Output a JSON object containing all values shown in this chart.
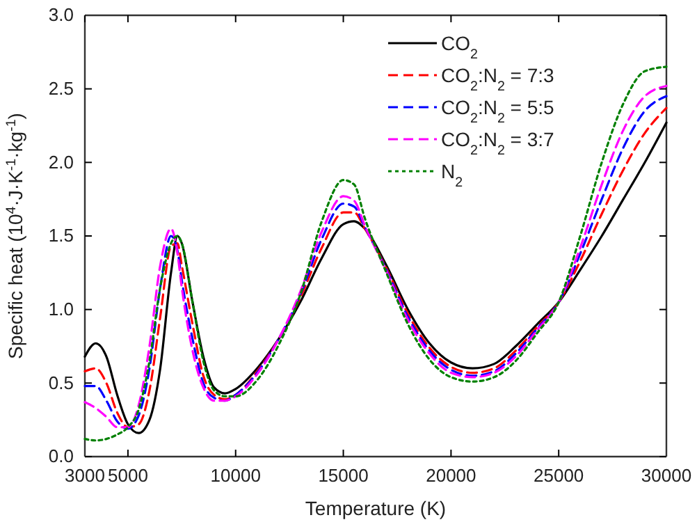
{
  "chart_data": {
    "type": "line",
    "xlabel": "Temperature (K)",
    "ylabel": "Specific heat (10$^{4}$·J·K$^{-1}$·kg$^{-1}$)",
    "x": [
      3000,
      3500,
      4000,
      4500,
      5000,
      5500,
      6000,
      6500,
      7000,
      7300,
      7500,
      8000,
      8500,
      9000,
      9500,
      10000,
      11000,
      12000,
      13000,
      14000,
      15000,
      15500,
      16000,
      17000,
      18000,
      19000,
      20000,
      21000,
      22000,
      23000,
      24000,
      25000,
      26000,
      27000,
      28000,
      29000,
      30000
    ],
    "xlim": [
      3000,
      30000
    ],
    "xticks": [
      3000,
      5000,
      10000,
      15000,
      20000,
      25000,
      30000
    ],
    "ylim": [
      0,
      3
    ],
    "yticks": [
      {
        "value": 0,
        "label": "0.0"
      },
      0.5,
      {
        "value": 1,
        "label": "1.0"
      },
      1.5,
      {
        "value": 2,
        "label": "2.0"
      },
      2.5,
      {
        "value": 3,
        "label": "3.0"
      }
    ],
    "legend": "top right",
    "grid": false,
    "series": [
      {
        "name": "CO$_{2}$",
        "color": "#000000",
        "line_style": "solid",
        "values": [
          0.68,
          0.77,
          0.68,
          0.42,
          0.22,
          0.16,
          0.25,
          0.6,
          1.25,
          1.5,
          1.45,
          1.05,
          0.68,
          0.47,
          0.43,
          0.46,
          0.6,
          0.8,
          1.05,
          1.35,
          1.58,
          1.6,
          1.55,
          1.3,
          1.0,
          0.77,
          0.64,
          0.6,
          0.63,
          0.75,
          0.9,
          1.05,
          1.27,
          1.5,
          1.75,
          2.0,
          2.27
        ]
      },
      {
        "name": "CO$_{2}$:N$_{2}$ = 7:3",
        "color": "#ff0000",
        "line_style": "dashed",
        "values": [
          0.58,
          0.6,
          0.5,
          0.3,
          0.2,
          0.22,
          0.45,
          0.95,
          1.43,
          1.45,
          1.3,
          0.9,
          0.55,
          0.42,
          0.39,
          0.42,
          0.58,
          0.8,
          1.08,
          1.42,
          1.66,
          1.66,
          1.55,
          1.28,
          0.97,
          0.74,
          0.61,
          0.57,
          0.6,
          0.72,
          0.88,
          1.05,
          1.33,
          1.65,
          1.95,
          2.2,
          2.37
        ]
      },
      {
        "name": "CO$_{2}$:N$_{2}$ = 5:5",
        "color": "#0000ff",
        "line_style": "dashed",
        "values": [
          0.48,
          0.48,
          0.38,
          0.24,
          0.19,
          0.28,
          0.6,
          1.15,
          1.5,
          1.4,
          1.2,
          0.8,
          0.5,
          0.4,
          0.38,
          0.42,
          0.57,
          0.8,
          1.1,
          1.48,
          1.72,
          1.7,
          1.56,
          1.27,
          0.95,
          0.72,
          0.59,
          0.55,
          0.58,
          0.7,
          0.87,
          1.05,
          1.38,
          1.75,
          2.1,
          2.35,
          2.45
        ]
      },
      {
        "name": "CO$_{2}$:N$_{2}$ = 3:7",
        "color": "#ff00ff",
        "line_style": "dashed",
        "values": [
          0.37,
          0.33,
          0.27,
          0.2,
          0.2,
          0.35,
          0.75,
          1.3,
          1.55,
          1.38,
          1.15,
          0.72,
          0.47,
          0.38,
          0.38,
          0.41,
          0.56,
          0.8,
          1.12,
          1.53,
          1.77,
          1.74,
          1.57,
          1.26,
          0.93,
          0.7,
          0.57,
          0.54,
          0.57,
          0.68,
          0.86,
          1.05,
          1.42,
          1.85,
          2.22,
          2.45,
          2.52
        ]
      },
      {
        "name": "N$_{2}$",
        "color": "#008000",
        "line_style": "dotted",
        "values": [
          0.12,
          0.11,
          0.12,
          0.15,
          0.2,
          0.32,
          0.65,
          1.15,
          1.45,
          1.5,
          1.45,
          1.05,
          0.65,
          0.45,
          0.41,
          0.41,
          0.52,
          0.76,
          1.1,
          1.6,
          1.88,
          1.85,
          1.62,
          1.25,
          0.9,
          0.66,
          0.54,
          0.51,
          0.54,
          0.65,
          0.84,
          1.05,
          1.5,
          2.0,
          2.4,
          2.62,
          2.65
        ]
      }
    ]
  }
}
